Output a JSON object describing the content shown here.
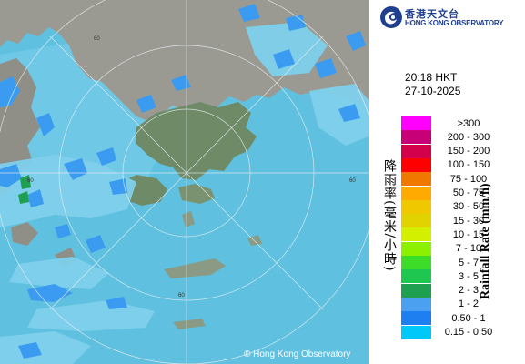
{
  "header": {
    "logo_icon": "hko-swirl-icon",
    "org_chinese": "香港天文台",
    "org_english": "HONG KONG OBSERVATORY"
  },
  "radar": {
    "time": "20:18 HKT",
    "date": "27-10-2025",
    "copyright": "© Hong Kong Observatory",
    "range_ring_labels": [
      "60",
      "60",
      "60",
      "60"
    ],
    "colors": {
      "sea": "#5fc1df",
      "land": "#9a9a92",
      "hong_kong_terrain": "#6f8a66",
      "rain_light": "#7fd0ec",
      "rain_moderate": "#2d8ee8",
      "rain_blue": "#3a9bf0"
    }
  },
  "legend": {
    "title_chinese": "降雨率(毫米/小時)",
    "title_english": "Rainfall Rate (mm/h)",
    "items": [
      {
        "label": ">300",
        "color": "#ff00ff"
      },
      {
        "label": "200 - 300",
        "color": "#c80078"
      },
      {
        "label": "150 - 200",
        "color": "#d3004b"
      },
      {
        "label": "100 - 150",
        "color": "#ff0000"
      },
      {
        "label": "75 - 100",
        "color": "#f07800"
      },
      {
        "label": "50 - 75",
        "color": "#ffaa00"
      },
      {
        "label": "30 - 50",
        "color": "#f0c800"
      },
      {
        "label": "15 - 30",
        "color": "#e2d200"
      },
      {
        "label": "10 - 15",
        "color": "#d2f000"
      },
      {
        "label": "7 - 10",
        "color": "#8cf000"
      },
      {
        "label": "5 - 7",
        "color": "#3cdc28"
      },
      {
        "label": "3 - 5",
        "color": "#1ec850"
      },
      {
        "label": "2 - 3",
        "color": "#1ea050"
      },
      {
        "label": "1 - 2",
        "color": "#4ca0f0"
      },
      {
        "label": "0.50 - 1",
        "color": "#1e7ff0"
      },
      {
        "label": "0.15 - 0.50",
        "color": "#00c8f8"
      }
    ]
  }
}
